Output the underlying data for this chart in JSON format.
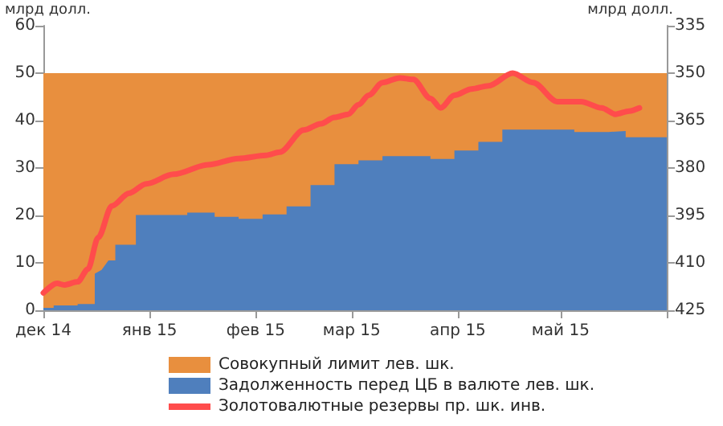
{
  "chart_data": {
    "type": "area",
    "ylabel": "млрд долл.",
    "y2label": "млрд долл.",
    "xlim": [
      "2014-12-01",
      "2015-06-01"
    ],
    "xticks": [
      {
        "value": "2014-12-01",
        "label": "дек 14"
      },
      {
        "value": "2015-01-01",
        "label": "янв 15"
      },
      {
        "value": "2015-02-01",
        "label": "фев 15"
      },
      {
        "value": "2015-03-01",
        "label": "мар 15"
      },
      {
        "value": "2015-04-01",
        "label": "апр 15"
      },
      {
        "value": "2015-05-01",
        "label": "май 15"
      },
      {
        "value": "2015-06-01",
        "label": null
      }
    ],
    "ylim": [
      0,
      60
    ],
    "yticks": [
      0,
      10,
      20,
      30,
      40,
      50,
      60
    ],
    "y2lim": [
      425,
      335
    ],
    "y2ticks": [
      335,
      350,
      365,
      380,
      395,
      410,
      425
    ],
    "grid": false,
    "legend": "bottom",
    "marker": "none",
    "series": [
      {
        "name": "Совокупный лимит лев. шк.",
        "color": "#e88f3e",
        "x": [
          "2014-12-01",
          "2015-06-01"
        ],
        "values": [
          50,
          50
        ]
      },
      {
        "name": "Задолженность перед ЦБ в валюте лев. шк.",
        "color": "#4f7fbd",
        "x": [
          "2014-12-01",
          "2014-12-04",
          "2014-12-04",
          "2014-12-11",
          "2014-12-11",
          "2014-12-16",
          "2014-12-16",
          "2014-12-18",
          "2014-12-20",
          "2014-12-22",
          "2014-12-22",
          "2014-12-28",
          "2014-12-28",
          "2015-01-12",
          "2015-01-12",
          "2015-01-20",
          "2015-01-20",
          "2015-01-27",
          "2015-01-27",
          "2015-02-03",
          "2015-02-03",
          "2015-02-10",
          "2015-02-10",
          "2015-02-17",
          "2015-02-17",
          "2015-02-24",
          "2015-02-24",
          "2015-03-03",
          "2015-03-03",
          "2015-03-10",
          "2015-03-10",
          "2015-03-24",
          "2015-03-24",
          "2015-03-31",
          "2015-03-31",
          "2015-04-07",
          "2015-04-07",
          "2015-04-14",
          "2015-04-14",
          "2015-05-05",
          "2015-05-05",
          "2015-05-15",
          "2015-05-15",
          "2015-05-20",
          "2015-05-20",
          "2015-06-01"
        ],
        "values": [
          0.5,
          0.5,
          1.0,
          1.0,
          1.3,
          1.3,
          7.7,
          8.5,
          10.5,
          10.5,
          13.8,
          13.8,
          20.1,
          20.1,
          20.6,
          20.6,
          19.7,
          19.7,
          19.3,
          19.3,
          20.2,
          20.2,
          21.9,
          21.9,
          26.4,
          26.4,
          30.8,
          30.8,
          31.6,
          31.6,
          32.5,
          32.5,
          31.9,
          31.9,
          33.7,
          33.7,
          35.5,
          35.5,
          38.1,
          38.1,
          37.6,
          37.6,
          37.8,
          37.8,
          36.5,
          36.5
        ]
      },
      {
        "name": "Золотовалютные резервы пр. шк. инв.",
        "type": "line",
        "axis": "y2",
        "color": "#ff4c4c",
        "x": [
          "2014-12-01",
          "2014-12-05",
          "2014-12-07",
          "2014-12-11",
          "2014-12-14",
          "2014-12-17",
          "2014-12-21",
          "2014-12-26",
          "2014-12-31",
          "2015-01-08",
          "2015-01-18",
          "2015-01-27",
          "2015-02-04",
          "2015-02-08",
          "2015-02-15",
          "2015-02-20",
          "2015-02-24",
          "2015-02-28",
          "2015-03-03",
          "2015-03-06",
          "2015-03-10",
          "2015-03-15",
          "2015-03-19",
          "2015-03-24",
          "2015-03-27",
          "2015-03-31",
          "2015-04-05",
          "2015-04-10",
          "2015-04-17",
          "2015-04-23",
          "2015-04-30",
          "2015-05-07",
          "2015-05-13",
          "2015-05-17",
          "2015-05-21",
          "2015-05-24"
        ],
        "values": [
          419.5,
          416.5,
          417,
          416,
          412,
          402,
          392,
          388,
          385,
          382,
          379,
          377,
          376,
          375,
          368,
          366,
          364,
          363,
          360,
          357,
          353,
          351.5,
          352,
          358,
          361,
          357,
          355,
          354,
          350,
          353,
          359,
          359,
          361,
          363,
          362,
          361
        ]
      }
    ]
  }
}
